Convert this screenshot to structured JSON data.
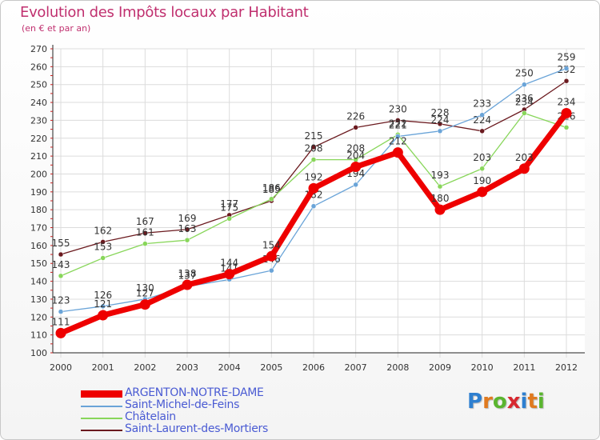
{
  "title": "Evolution des Impôts locaux par Habitant",
  "subtitle": "(en € et par an)",
  "logo": {
    "letters": [
      "P",
      "r",
      "o",
      "x",
      "i",
      "t",
      "i"
    ],
    "colors": [
      "#2e7fd0",
      "#e07a1f",
      "#5ab52f",
      "#d7282f",
      "#2e7fd0",
      "#e07a1f",
      "#5ab52f"
    ]
  },
  "chart_data": {
    "type": "line",
    "title": "Evolution des Impôts locaux par Habitant",
    "subtitle": "(en € et par an)",
    "x": [
      "2000",
      "2001",
      "2002",
      "2003",
      "2004",
      "2005",
      "2006",
      "2007",
      "2008",
      "2009",
      "2010",
      "2011",
      "2012"
    ],
    "y_ticks": [
      "100",
      "110",
      "120",
      "130",
      "140",
      "150",
      "160",
      "170",
      "180",
      "190",
      "200",
      "210",
      "220",
      "230",
      "240",
      "250",
      "260",
      "270"
    ],
    "ylim": [
      100,
      270
    ],
    "grid": true,
    "series": [
      {
        "name": "Saint-Laurent-des-Mortiers",
        "color": "#6b1a1f",
        "values": [
          155,
          162,
          167,
          169,
          177,
          185,
          215,
          226,
          230,
          228,
          224,
          236,
          252
        ],
        "labels": [
          "155",
          "162",
          "167",
          "169",
          "177",
          "185",
          "215",
          "226",
          "230",
          "228",
          "224",
          "236",
          "252"
        ]
      },
      {
        "name": "Châtelain",
        "color": "#88d65a",
        "values": [
          143,
          153,
          161,
          163,
          175,
          186,
          208,
          208,
          222,
          193,
          203,
          234,
          226
        ],
        "labels": [
          "143",
          "153",
          "161",
          "163",
          "175",
          "186",
          "208",
          "208",
          "222",
          "193",
          "203",
          "234",
          "226"
        ]
      },
      {
        "name": "Saint-Michel-de-Feins",
        "color": "#6aa4d8",
        "values": [
          123,
          126,
          130,
          137,
          141,
          146,
          182,
          194,
          221,
          224,
          233,
          250,
          259
        ],
        "labels": [
          "123",
          "126",
          "130",
          "137",
          "141",
          "146",
          "182",
          "194",
          "221",
          "224",
          "233",
          "250",
          "259"
        ]
      },
      {
        "name": "ARGENTON-NOTRE-DAME",
        "color": "#ee0000",
        "values": [
          111,
          121,
          127,
          138,
          144,
          154,
          192,
          204,
          212,
          180,
          190,
          203,
          234
        ],
        "labels": [
          "111",
          "121",
          "127",
          "138",
          "144",
          "154",
          "192",
          "204",
          "212",
          "180",
          "190",
          "203",
          "234"
        ]
      }
    ],
    "legend": [
      "ARGENTON-NOTRE-DAME",
      "Saint-Michel-de-Feins",
      "Châtelain",
      "Saint-Laurent-des-Mortiers"
    ]
  }
}
